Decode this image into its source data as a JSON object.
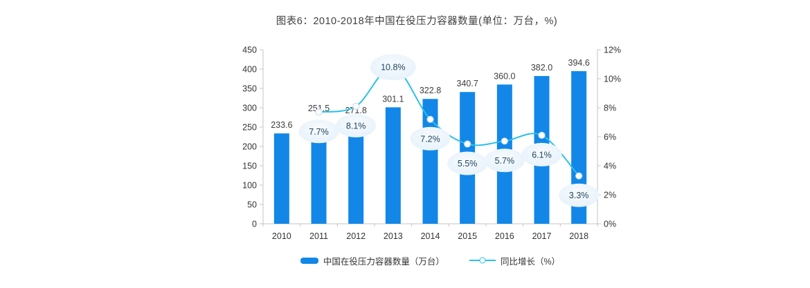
{
  "title": "图表6：2010-2018年中国在役压力容器数量(单位：万台，%)",
  "chart_data": {
    "type": "combo-bar-line",
    "categories": [
      "2010",
      "2011",
      "2012",
      "2013",
      "2014",
      "2015",
      "2016",
      "2017",
      "2018"
    ],
    "series": [
      {
        "name": "中国在役压力容器数量（万台）",
        "type": "bar",
        "axis": "left",
        "values": [
          233.6,
          251.5,
          271.8,
          301.1,
          322.8,
          340.7,
          360.0,
          382.0,
          394.6
        ],
        "labels": [
          "233.6",
          "251.5",
          "271.8",
          "301.1",
          "322.8",
          "340.7",
          "360.0",
          "382.0",
          "394.6"
        ]
      },
      {
        "name": "同比增长（%）",
        "type": "line",
        "axis": "right",
        "values": [
          null,
          7.7,
          8.1,
          10.8,
          7.2,
          5.5,
          5.7,
          6.1,
          3.3
        ],
        "labels": [
          "",
          "7.7%",
          "8.1%",
          "10.8%",
          "7.2%",
          "5.5%",
          "5.7%",
          "6.1%",
          "3.3%"
        ]
      }
    ],
    "left_axis": {
      "min": 0,
      "max": 450,
      "step": 50,
      "tick_labels": [
        "450",
        "400",
        "350",
        "300",
        "250",
        "200",
        "150",
        "100",
        "50",
        "0"
      ]
    },
    "right_axis": {
      "min": 0,
      "max": 12,
      "step": 2,
      "tick_labels": [
        "12%",
        "10%",
        "8%",
        "6%",
        "4%",
        "2%",
        "0%"
      ]
    },
    "grid": false,
    "legend_position": "bottom"
  },
  "legend": {
    "items": [
      {
        "label": "中国在役压力容器数量（万台）"
      },
      {
        "label": "同比增长（%）"
      }
    ]
  },
  "colors": {
    "bar": "#1287e8",
    "line": "#2ac0e8",
    "marker_fill": "#ffffff",
    "marker_stroke": "#c9dfec",
    "bubble_fill_inner": "#f7fbfe",
    "bubble_fill_outer": "#e4f0fa",
    "bubble_text": "#1f455e",
    "axis_line": "#c4c4c4",
    "axis_text": "#333333",
    "value_label": "#3c3c3c",
    "title_text": "#404040",
    "background": "#ffffff"
  }
}
